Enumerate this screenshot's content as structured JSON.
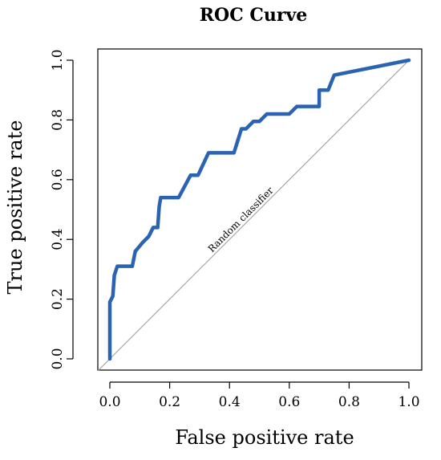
{
  "chart_data": {
    "type": "line",
    "title": "ROC Curve",
    "xlabel": "False positive rate",
    "ylabel": "True positive rate",
    "xlim": [
      0,
      1
    ],
    "ylim": [
      0,
      1
    ],
    "x_ticks": [
      "0.0",
      "0.2",
      "0.4",
      "0.6",
      "0.8",
      "1.0"
    ],
    "y_ticks": [
      "0.0",
      "0.2",
      "0.4",
      "0.6",
      "0.8",
      "1.0"
    ],
    "grid": false,
    "annotations": [
      {
        "text": "Random classifier"
      }
    ],
    "series": [
      {
        "color": "#2b63b3",
        "x": [
          0.0,
          0.0,
          0.0,
          0.01,
          0.015,
          0.025,
          0.05,
          0.075,
          0.085,
          0.11,
          0.13,
          0.145,
          0.16,
          0.165,
          0.17,
          0.23,
          0.27,
          0.295,
          0.33,
          0.415,
          0.44,
          0.455,
          0.48,
          0.5,
          0.525,
          0.6,
          0.625,
          0.7,
          0.7,
          0.73,
          0.75,
          1.0
        ],
        "y": [
          0.0,
          0.18,
          0.19,
          0.21,
          0.28,
          0.31,
          0.31,
          0.31,
          0.36,
          0.39,
          0.41,
          0.44,
          0.44,
          0.51,
          0.54,
          0.54,
          0.615,
          0.615,
          0.69,
          0.69,
          0.77,
          0.77,
          0.795,
          0.795,
          0.82,
          0.82,
          0.845,
          0.845,
          0.9,
          0.9,
          0.95,
          1.0
        ]
      },
      {
        "color": "#a6a6a6",
        "x": [
          -0.04,
          1.0
        ],
        "y": [
          -0.04,
          1.0
        ]
      }
    ]
  }
}
